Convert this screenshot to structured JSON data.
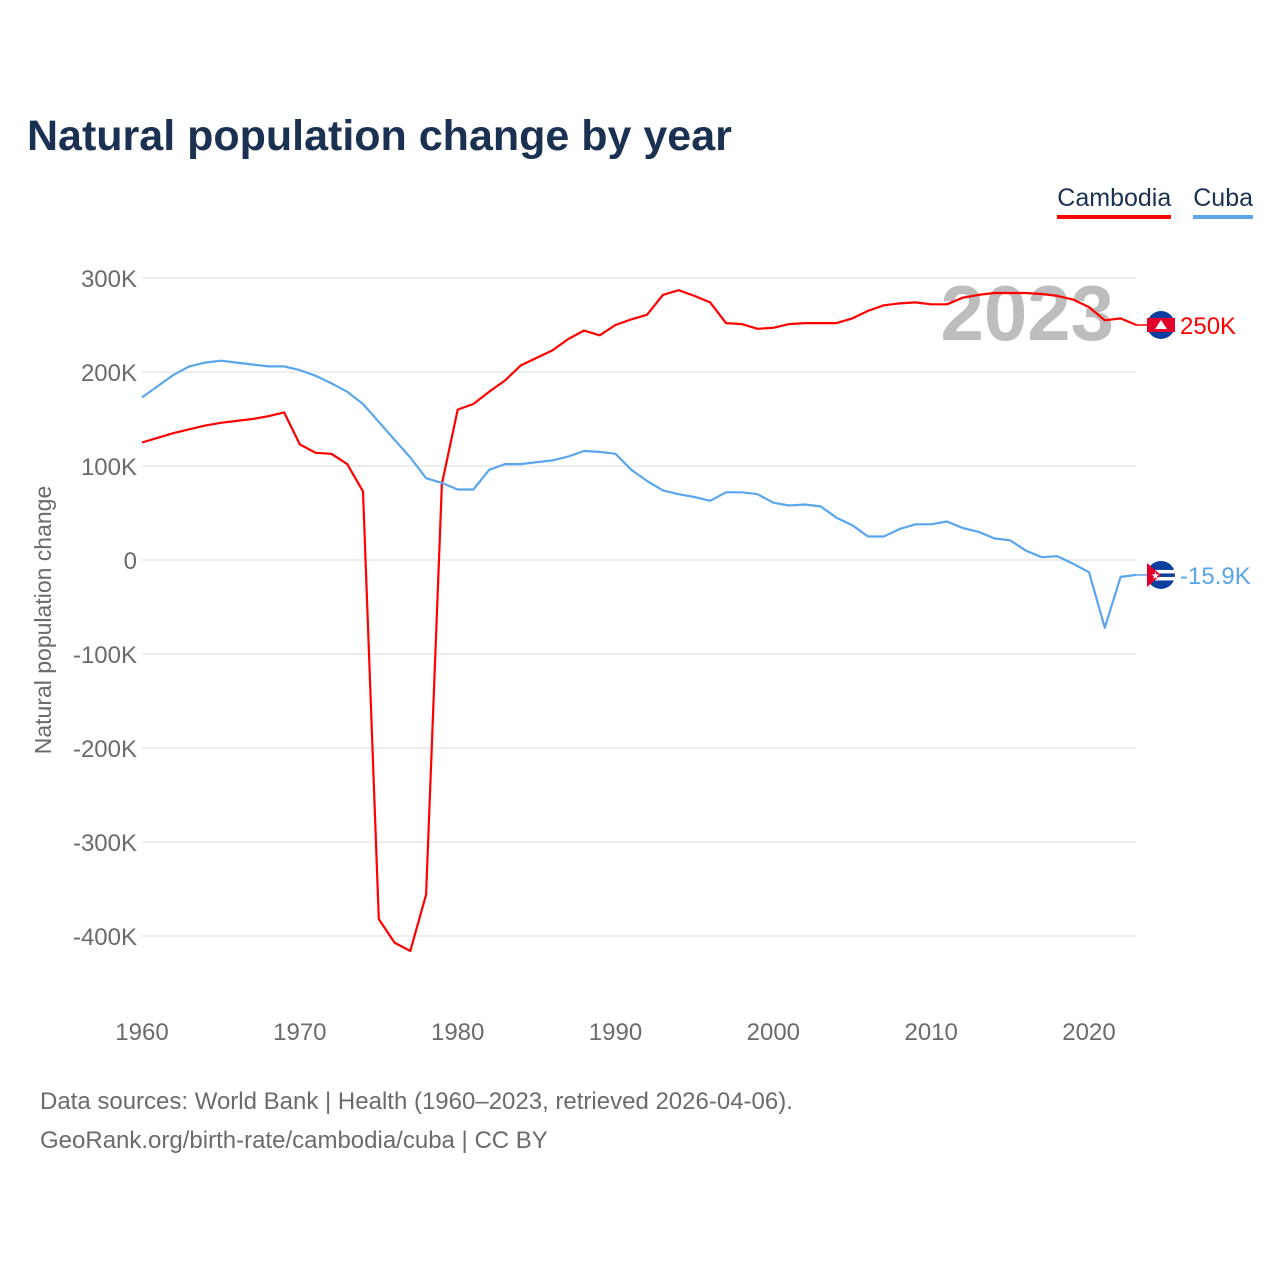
{
  "title": "Natural population change by year",
  "footer": {
    "line1": "Data sources: World Bank | Health (1960–2023, retrieved 2026-04-06).",
    "line2": "GeoRank.org/birth-rate/cambodia/cuba | CC BY"
  },
  "chart_data": {
    "type": "line",
    "title": "Natural population change by year",
    "xlabel": "",
    "ylabel": "Natural population change",
    "year_watermark": "2023",
    "xlim": [
      1960,
      2023
    ],
    "ylim": [
      -450000,
      300000
    ],
    "x_ticks": [
      1960,
      1970,
      1980,
      1990,
      2000,
      2010,
      2020
    ],
    "x_tick_labels": [
      "1960",
      "1970",
      "1980",
      "1990",
      "2000",
      "2010",
      "2020"
    ],
    "y_ticks": [
      300000,
      200000,
      100000,
      0,
      -100000,
      -200000,
      -300000,
      -400000
    ],
    "y_tick_labels": [
      "300K",
      "200K",
      "100K",
      "0",
      "-100K",
      "-200K",
      "-300K",
      "-400K"
    ],
    "grid": true,
    "legend_position": "top-right",
    "x": [
      1960,
      1961,
      1962,
      1963,
      1964,
      1965,
      1966,
      1967,
      1968,
      1969,
      1970,
      1971,
      1972,
      1973,
      1974,
      1975,
      1976,
      1977,
      1978,
      1979,
      1980,
      1981,
      1982,
      1983,
      1984,
      1985,
      1986,
      1987,
      1988,
      1989,
      1990,
      1991,
      1992,
      1993,
      1994,
      1995,
      1996,
      1997,
      1998,
      1999,
      2000,
      2001,
      2002,
      2003,
      2004,
      2005,
      2006,
      2007,
      2008,
      2009,
      2010,
      2011,
      2012,
      2013,
      2014,
      2015,
      2016,
      2017,
      2018,
      2019,
      2020,
      2021,
      2022,
      2023
    ],
    "series": [
      {
        "name": "Cambodia",
        "color": "#ff0000",
        "end_label": "250K",
        "values": [
          125000,
          130000,
          135000,
          139000,
          143000,
          146000,
          148000,
          150000,
          153000,
          157000,
          123000,
          114000,
          113000,
          102000,
          73000,
          -382000,
          -407000,
          -416000,
          -356000,
          81000,
          160000,
          166000,
          179000,
          191000,
          207000,
          215000,
          223000,
          235000,
          244000,
          239000,
          250000,
          256000,
          261000,
          282000,
          287000,
          281000,
          274000,
          252000,
          251000,
          246000,
          247000,
          251000,
          252000,
          252000,
          252000,
          257000,
          265000,
          271000,
          273000,
          274000,
          272000,
          272000,
          279000,
          282000,
          284000,
          284000,
          284000,
          283000,
          281000,
          277000,
          269000,
          255000,
          257000,
          250000
        ]
      },
      {
        "name": "Cuba",
        "color": "#5aa5ec",
        "end_label": "-15.9K",
        "values": [
          173000,
          185000,
          197000,
          206000,
          210000,
          212000,
          210000,
          208000,
          206000,
          206000,
          202000,
          196000,
          188000,
          179000,
          166000,
          147000,
          128000,
          109000,
          87000,
          82000,
          75000,
          75000,
          96000,
          102000,
          102000,
          104000,
          106000,
          110000,
          116000,
          115000,
          113000,
          96000,
          84000,
          74000,
          70000,
          67000,
          63000,
          72000,
          72000,
          70000,
          61000,
          58000,
          59000,
          57000,
          45000,
          37000,
          25000,
          25000,
          33000,
          38000,
          38000,
          41000,
          34000,
          30000,
          23000,
          21000,
          10000,
          3000,
          4000,
          -4000,
          -13000,
          -72000,
          -18000,
          -15900
        ]
      }
    ]
  }
}
